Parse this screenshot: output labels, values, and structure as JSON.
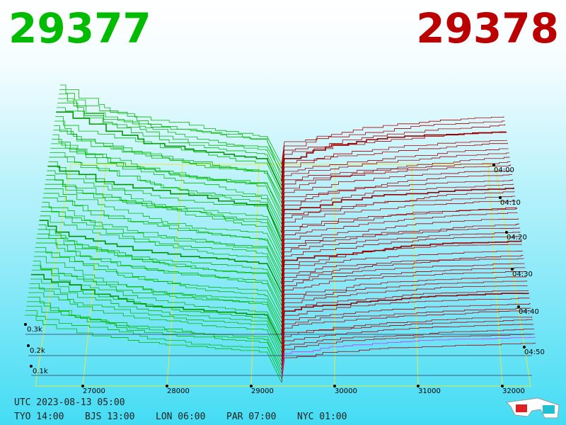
{
  "header": {
    "bid": "29377",
    "ask": "29378"
  },
  "price_axis": [
    "27000",
    "28000",
    "29000",
    "30000",
    "31000",
    "32000"
  ],
  "volume_axis": [
    "0.1k",
    "0.2k",
    "0.3k"
  ],
  "time_axis": [
    "04:00",
    "04:10",
    "04:20",
    "04:30",
    "04:40",
    "04:50"
  ],
  "footer": {
    "utc": "UTC 2023-08-13 05:00",
    "zones": [
      "TYO 14:00",
      "BJS 13:00",
      "LON 06:00",
      "PAR 07:00",
      "NYC 01:00"
    ]
  }
}
